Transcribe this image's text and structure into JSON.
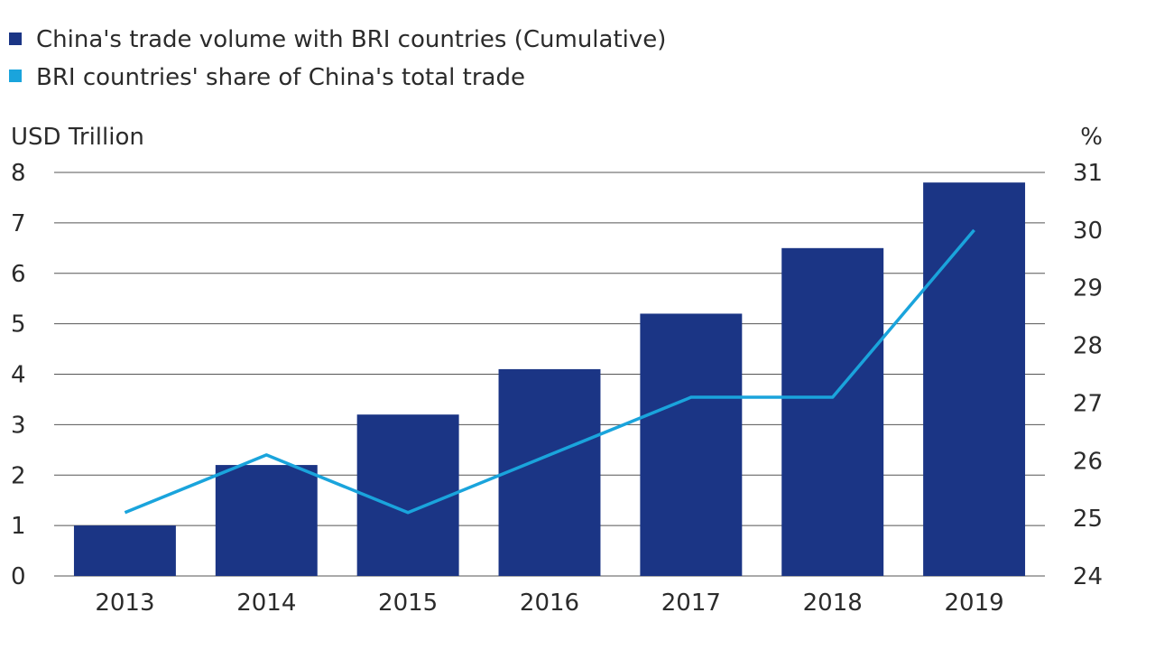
{
  "chart_data": {
    "type": "bar",
    "categories": [
      "2013",
      "2014",
      "2015",
      "2016",
      "2017",
      "2018",
      "2019"
    ],
    "series": [
      {
        "name": "China's trade volume with BRI countries (Cumulative)",
        "type": "bar",
        "axis": "left",
        "values": [
          1.0,
          2.2,
          3.2,
          4.1,
          5.2,
          6.5,
          7.8
        ]
      },
      {
        "name": "BRI countries' share of China's total trade",
        "type": "line",
        "axis": "right",
        "values": [
          25.1,
          26.1,
          25.1,
          26.1,
          27.1,
          27.1,
          30.0
        ]
      }
    ],
    "left_axis": {
      "label": "USD Trillion",
      "range": [
        0,
        8
      ],
      "ticks": [
        "0",
        "1",
        "2",
        "3",
        "4",
        "5",
        "6",
        "7",
        "8"
      ]
    },
    "right_axis": {
      "label": "%",
      "range": [
        24,
        31
      ],
      "ticks": [
        "24",
        "25",
        "26",
        "27",
        "28",
        "29",
        "30",
        "31"
      ]
    },
    "grid": true,
    "legend_position": "top-left",
    "colors": {
      "bar": "#1b3585",
      "line": "#1aa4dc",
      "grid": "#555555"
    }
  }
}
